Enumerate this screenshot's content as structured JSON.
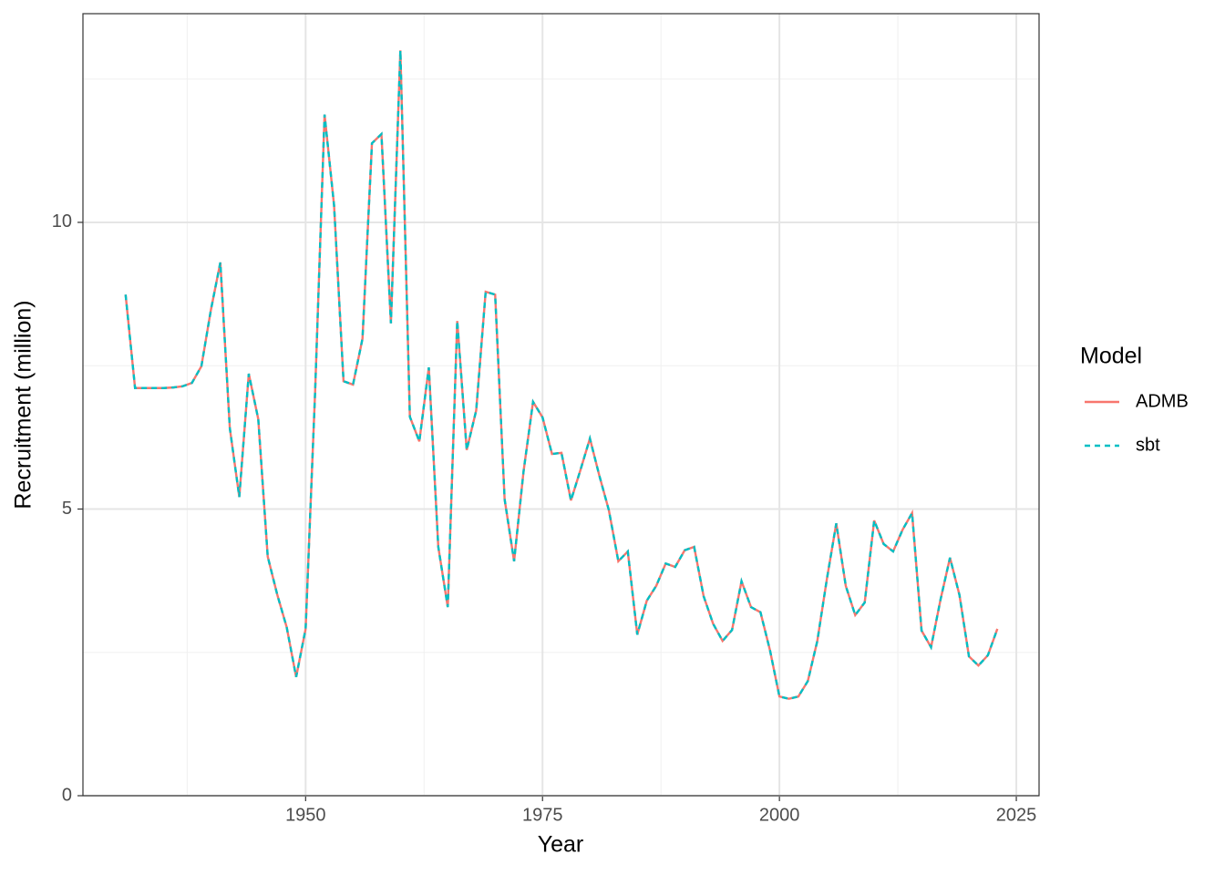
{
  "chart_data": {
    "type": "line",
    "x_label": "Year",
    "y_label": "Recruitment (million)",
    "legend_title": "Model",
    "legend_position": "right",
    "x": [
      1931,
      1932,
      1933,
      1934,
      1935,
      1936,
      1937,
      1938,
      1939,
      1940,
      1941,
      1942,
      1943,
      1944,
      1945,
      1946,
      1947,
      1948,
      1949,
      1950,
      1951,
      1952,
      1953,
      1954,
      1955,
      1956,
      1957,
      1958,
      1959,
      1960,
      1961,
      1962,
      1963,
      1964,
      1965,
      1966,
      1967,
      1968,
      1969,
      1970,
      1971,
      1972,
      1973,
      1974,
      1975,
      1976,
      1977,
      1978,
      1979,
      1980,
      1981,
      1982,
      1983,
      1984,
      1985,
      1986,
      1987,
      1988,
      1989,
      1990,
      1991,
      1992,
      1993,
      1994,
      1995,
      1996,
      1997,
      1998,
      1999,
      2000,
      2001,
      2002,
      2003,
      2004,
      2005,
      2006,
      2007,
      2008,
      2009,
      2010,
      2011,
      2012,
      2013,
      2014,
      2015,
      2016,
      2017,
      2018,
      2019,
      2020,
      2021,
      2022,
      2023
    ],
    "series": [
      {
        "name": "ADMB",
        "color": "#F8766D",
        "linestyle": "solid",
        "values": [
          8.74,
          7.11,
          7.11,
          7.11,
          7.11,
          7.12,
          7.14,
          7.2,
          7.49,
          8.47,
          9.3,
          6.41,
          5.21,
          7.36,
          6.57,
          4.17,
          3.51,
          2.94,
          2.07,
          2.91,
          7.04,
          11.88,
          10.3,
          7.23,
          7.17,
          7.97,
          11.38,
          11.54,
          8.24,
          13.0,
          6.61,
          6.18,
          7.47,
          4.34,
          3.29,
          8.28,
          6.03,
          6.72,
          8.79,
          8.74,
          5.17,
          4.09,
          5.66,
          6.87,
          6.6,
          5.96,
          5.98,
          5.15,
          5.68,
          6.23,
          5.58,
          4.98,
          4.09,
          4.26,
          2.81,
          3.4,
          3.66,
          4.05,
          3.99,
          4.28,
          4.34,
          3.48,
          3.0,
          2.7,
          2.89,
          3.74,
          3.29,
          3.2,
          2.54,
          1.73,
          1.69,
          1.73,
          2.0,
          2.7,
          3.77,
          4.75,
          3.66,
          3.15,
          3.37,
          4.8,
          4.39,
          4.26,
          4.64,
          4.93,
          2.88,
          2.59,
          3.42,
          4.15,
          3.5,
          2.43,
          2.27,
          2.45,
          2.91
        ]
      },
      {
        "name": "sbt",
        "color": "#00BFC4",
        "linestyle": "dashed",
        "values": [
          8.74,
          7.11,
          7.11,
          7.11,
          7.11,
          7.12,
          7.14,
          7.2,
          7.49,
          8.47,
          9.3,
          6.41,
          5.21,
          7.36,
          6.57,
          4.17,
          3.51,
          2.94,
          2.07,
          2.91,
          7.04,
          11.88,
          10.3,
          7.23,
          7.17,
          7.97,
          11.38,
          11.54,
          8.24,
          13.0,
          6.61,
          6.18,
          7.47,
          4.34,
          3.29,
          8.28,
          6.03,
          6.72,
          8.79,
          8.74,
          5.17,
          4.09,
          5.66,
          6.87,
          6.6,
          5.96,
          5.98,
          5.15,
          5.68,
          6.23,
          5.58,
          4.98,
          4.09,
          4.26,
          2.81,
          3.4,
          3.66,
          4.05,
          3.99,
          4.28,
          4.34,
          3.48,
          3.0,
          2.7,
          2.89,
          3.74,
          3.29,
          3.2,
          2.54,
          1.73,
          1.69,
          1.73,
          2.0,
          2.7,
          3.77,
          4.75,
          3.66,
          3.15,
          3.37,
          4.8,
          4.39,
          4.26,
          4.64,
          4.93,
          2.88,
          2.59,
          3.42,
          4.15,
          3.5,
          2.43,
          2.27,
          2.45,
          2.91
        ]
      }
    ],
    "xlim": [
      1926.5,
      2027.4
    ],
    "ylim": [
      0,
      13.64
    ],
    "xticks": [
      1950,
      1975,
      2000,
      2025
    ],
    "yticks": [
      0,
      5,
      10
    ],
    "x_minor_grid": [
      1937.5,
      1962.5,
      1987.5,
      2012.5
    ],
    "y_minor_grid": [
      2.5,
      7.5,
      12.5
    ],
    "grid": true
  }
}
